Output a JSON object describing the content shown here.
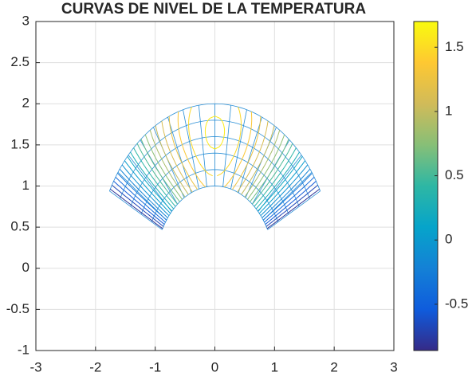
{
  "chart_data": {
    "type": "contour",
    "title": "CURVAS DE NIVEL DE LA TEMPERATURA",
    "xlim": [
      -3,
      3
    ],
    "xticks": [
      -3,
      -2,
      -1,
      0,
      1,
      2,
      3
    ],
    "ylim": [
      -1,
      3
    ],
    "yticks": [
      -1,
      -0.5,
      0,
      0.5,
      1,
      1.5,
      2,
      2.5,
      3
    ],
    "grid": true,
    "levels": [
      -0.8,
      -0.68,
      -0.56,
      -0.44,
      -0.32,
      -0.2,
      -0.08,
      0.04,
      0.16,
      0.28,
      0.4,
      0.52,
      0.64,
      0.76,
      0.88,
      1,
      1.12,
      1.24,
      1.36,
      1.48,
      1.6
    ],
    "colorbar": {
      "clim": [
        -0.86,
        1.7
      ],
      "ticks": [
        -0.5,
        0,
        0.5,
        1,
        1.5
      ]
    },
    "colormap": [
      "#352a87",
      "#0f5cdd",
      "#1481d6",
      "#06a4ca",
      "#2eb7a4",
      "#87bf77",
      "#d1bb59",
      "#fec832",
      "#f9fb0e"
    ]
  }
}
